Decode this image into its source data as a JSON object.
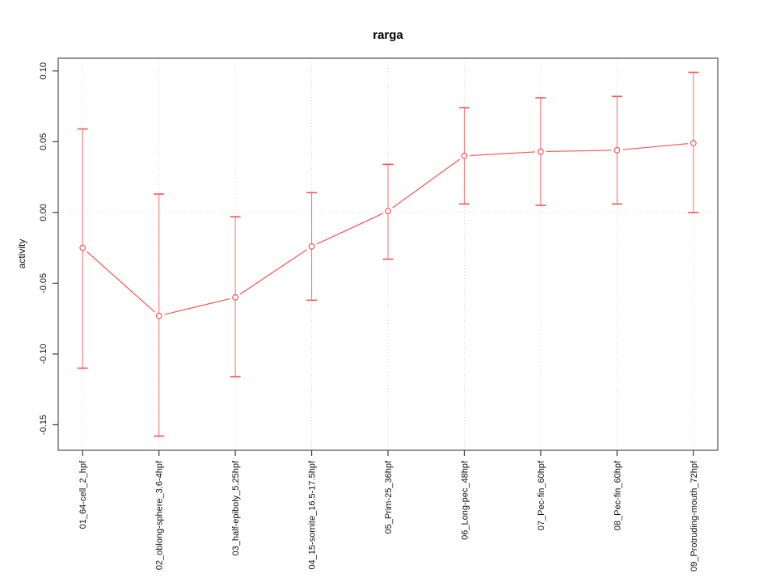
{
  "chart_data": {
    "type": "line",
    "title": "rarga",
    "xlabel": "",
    "ylabel": "activity",
    "categories": [
      "01_64-cell_2_hpf",
      "02_oblong-sphere_3.6-4hpf",
      "03_half-epiboly_5.25hpf",
      "04_15-somite_16.5-17.5hpf",
      "05_Prim-25_36hpf",
      "06_Long-pec_48hpf",
      "07_Pec-fin_60hpf",
      "08_Pec-fin_60hpf",
      "09_Protruding-mouth_72hpf"
    ],
    "series": [
      {
        "name": "rarga",
        "values": [
          -0.025,
          -0.073,
          -0.06,
          -0.024,
          0.001,
          0.04,
          0.043,
          0.044,
          0.049
        ],
        "error_high": [
          0.059,
          0.013,
          -0.003,
          0.014,
          0.034,
          0.074,
          0.081,
          0.082,
          0.099
        ],
        "error_low": [
          -0.11,
          -0.158,
          -0.116,
          -0.062,
          -0.033,
          0.006,
          0.005,
          0.006,
          0.0
        ]
      }
    ],
    "yticks": [
      0.1,
      0.05,
      0.0,
      -0.05,
      -0.1,
      -0.15
    ],
    "ytick_labels": [
      "0.10",
      "0.05",
      "0.00",
      "-0.05",
      "-0.10",
      "-0.15"
    ],
    "ylim": [
      -0.168,
      0.109
    ],
    "xlim_units": [
      0.68,
      9.32
    ],
    "marker": "open-circle",
    "legend": {
      "visible": false
    },
    "grid": {
      "vertical_per_category": true,
      "horizontal_at_zero": true,
      "style": "dotted"
    },
    "colors": {
      "series": "#ff5252",
      "error_bar": "#ff6b6b",
      "grid": "#d6d6d6",
      "box": "#5f5f5f",
      "tick": "#3f3f3f",
      "text": "#111111"
    }
  }
}
